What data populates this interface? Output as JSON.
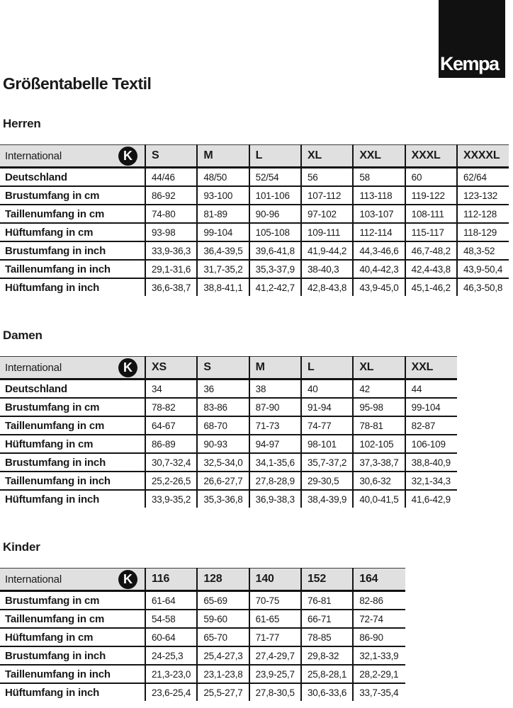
{
  "brand": {
    "logo_text": "Kempa"
  },
  "page_title": "Größentabelle Textil",
  "k_badge_glyph": "K",
  "colors": {
    "header_bg": "#e0e0e0",
    "border": "#141414",
    "logo_bg": "#111111",
    "text": "#1a1a1a"
  },
  "tables": [
    {
      "section": "Herren",
      "corner_label": "International",
      "sizes": [
        "S",
        "M",
        "L",
        "XL",
        "XXL",
        "XXXL",
        "XXXXL"
      ],
      "rows": [
        {
          "label": "Deutschland",
          "values": [
            "44/46",
            "48/50",
            "52/54",
            "56",
            "58",
            "60",
            "62/64"
          ]
        },
        {
          "label": "Brustumfang in cm",
          "values": [
            "86-92",
            "93-100",
            "101-106",
            "107-112",
            "113-118",
            "119-122",
            "123-132"
          ]
        },
        {
          "label": "Taillenumfang in cm",
          "values": [
            "74-80",
            "81-89",
            "90-96",
            "97-102",
            "103-107",
            "108-111",
            "112-128"
          ]
        },
        {
          "label": "Hüftumfang in cm",
          "values": [
            "93-98",
            "99-104",
            "105-108",
            "109-111",
            "112-114",
            "115-117",
            "118-129"
          ]
        },
        {
          "label": "Brustumfang in inch",
          "values": [
            "33,9-36,3",
            "36,4-39,5",
            "39,6-41,8",
            "41,9-44,2",
            "44,3-46,6",
            "46,7-48,2",
            "48,3-52"
          ]
        },
        {
          "label": "Taillenumfang in inch",
          "values": [
            "29,1-31,6",
            "31,7-35,2",
            "35,3-37,9",
            "38-40,3",
            "40,4-42,3",
            "42,4-43,8",
            "43,9-50,4"
          ]
        },
        {
          "label": "Hüftumfang in inch",
          "values": [
            "36,6-38,7",
            "38,8-41,1",
            "41,2-42,7",
            "42,8-43,8",
            "43,9-45,0",
            "45,1-46,2",
            "46,3-50,8"
          ]
        }
      ]
    },
    {
      "section": "Damen",
      "corner_label": "International",
      "sizes": [
        "XS",
        "S",
        "M",
        "L",
        "XL",
        "XXL"
      ],
      "rows": [
        {
          "label": "Deutschland",
          "values": [
            "34",
            "36",
            "38",
            "40",
            "42",
            "44"
          ]
        },
        {
          "label": "Brustumfang in cm",
          "values": [
            "78-82",
            "83-86",
            "87-90",
            "91-94",
            "95-98",
            "99-104"
          ]
        },
        {
          "label": "Taillenumfang in cm",
          "values": [
            "64-67",
            "68-70",
            "71-73",
            "74-77",
            "78-81",
            "82-87"
          ]
        },
        {
          "label": "Hüftumfang in cm",
          "values": [
            "86-89",
            "90-93",
            "94-97",
            "98-101",
            "102-105",
            "106-109"
          ]
        },
        {
          "label": "Brustumfang in inch",
          "values": [
            "30,7-32,4",
            "32,5-34,0",
            "34,1-35,6",
            "35,7-37,2",
            "37,3-38,7",
            "38,8-40,9"
          ]
        },
        {
          "label": "Taillenumfang in inch",
          "values": [
            "25,2-26,5",
            "26,6-27,7",
            "27,8-28,9",
            "29-30,5",
            "30,6-32",
            "32,1-34,3"
          ]
        },
        {
          "label": "Hüftumfang in inch",
          "values": [
            "33,9-35,2",
            "35,3-36,8",
            "36,9-38,3",
            "38,4-39,9",
            "40,0-41,5",
            "41,6-42,9"
          ]
        }
      ]
    },
    {
      "section": "Kinder",
      "corner_label": "International",
      "sizes": [
        "116",
        "128",
        "140",
        "152",
        "164"
      ],
      "rows": [
        {
          "label": "Brustumfang in cm",
          "values": [
            "61-64",
            "65-69",
            "70-75",
            "76-81",
            "82-86"
          ]
        },
        {
          "label": "Taillenumfang in cm",
          "values": [
            "54-58",
            "59-60",
            "61-65",
            "66-71",
            "72-74"
          ]
        },
        {
          "label": "Hüftumfang in cm",
          "values": [
            "60-64",
            "65-70",
            "71-77",
            "78-85",
            "86-90"
          ]
        },
        {
          "label": "Brustumfang in inch",
          "values": [
            "24-25,3",
            "25,4-27,3",
            "27,4-29,7",
            "29,8-32",
            "32,1-33,9"
          ]
        },
        {
          "label": "Taillenumfang in inch",
          "values": [
            "21,3-23,0",
            "23,1-23,8",
            "23,9-25,7",
            "25,8-28,1",
            "28,2-29,1"
          ]
        },
        {
          "label": "Hüftumfang in inch",
          "values": [
            "23,6-25,4",
            "25,5-27,7",
            "27,8-30,5",
            "30,6-33,6",
            "33,7-35,4"
          ]
        }
      ]
    }
  ]
}
